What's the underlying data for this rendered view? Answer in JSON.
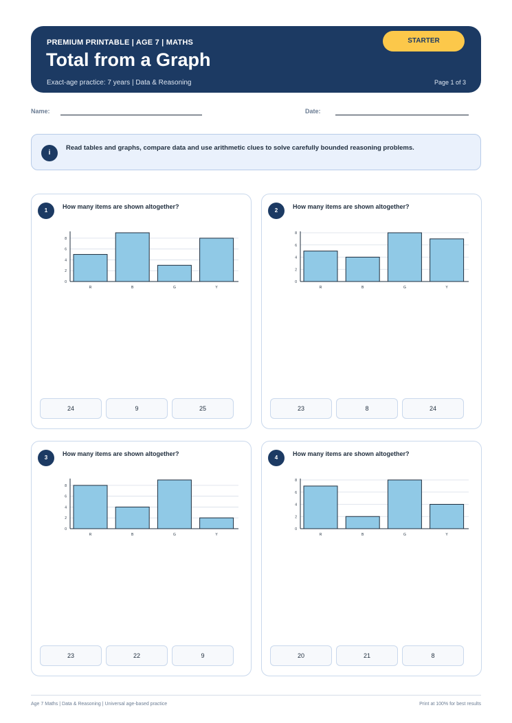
{
  "header": {
    "kicker": "PREMIUM PRINTABLE | AGE 7 | MATHS",
    "title": "Total from a Graph",
    "subtitle": "Exact-age practice: 7 years | Data & Reasoning",
    "page": "Page 1 of 3",
    "level": "STARTER"
  },
  "fields": {
    "name_label": "Name:",
    "date_label": "Date:"
  },
  "info": {
    "icon": "i",
    "text": "Read tables and graphs, compare data and use arithmetic clues to solve carefully bounded reasoning problems."
  },
  "questions": [
    {
      "number": "1",
      "text": "How many items are shown altogether?",
      "options": [
        "24",
        "9",
        "25"
      ]
    },
    {
      "number": "2",
      "text": "How many items are shown altogether?",
      "options": [
        "23",
        "8",
        "24"
      ]
    },
    {
      "number": "3",
      "text": "How many items are shown altogether?",
      "options": [
        "23",
        "22",
        "9"
      ]
    },
    {
      "number": "4",
      "text": "How many items are shown altogether?",
      "options": [
        "20",
        "21",
        "8"
      ]
    }
  ],
  "chart_data": [
    {
      "type": "bar",
      "categories": [
        "R",
        "B",
        "G",
        "Y"
      ],
      "values": [
        5,
        9,
        3,
        8
      ],
      "yticks": [
        0,
        2,
        4,
        6,
        8
      ],
      "ylim": [
        0,
        9
      ],
      "bar_color": "#90c9e6"
    },
    {
      "type": "bar",
      "categories": [
        "R",
        "B",
        "G",
        "Y"
      ],
      "values": [
        5,
        4,
        8,
        7
      ],
      "yticks": [
        0,
        2,
        4,
        6,
        8
      ],
      "ylim": [
        0,
        8
      ],
      "bar_color": "#90c9e6"
    },
    {
      "type": "bar",
      "categories": [
        "R",
        "B",
        "G",
        "Y"
      ],
      "values": [
        8,
        4,
        9,
        2
      ],
      "yticks": [
        0,
        2,
        4,
        6,
        8
      ],
      "ylim": [
        0,
        9
      ],
      "bar_color": "#90c9e6"
    },
    {
      "type": "bar",
      "categories": [
        "R",
        "B",
        "G",
        "Y"
      ],
      "values": [
        7,
        2,
        8,
        4
      ],
      "yticks": [
        0,
        2,
        4,
        6,
        8
      ],
      "ylim": [
        0,
        8
      ],
      "bar_color": "#90c9e6"
    }
  ],
  "footer": {
    "left": "Age 7 Maths | Data & Reasoning | Universal age-based practice",
    "right": "Print at 100% for best results"
  }
}
